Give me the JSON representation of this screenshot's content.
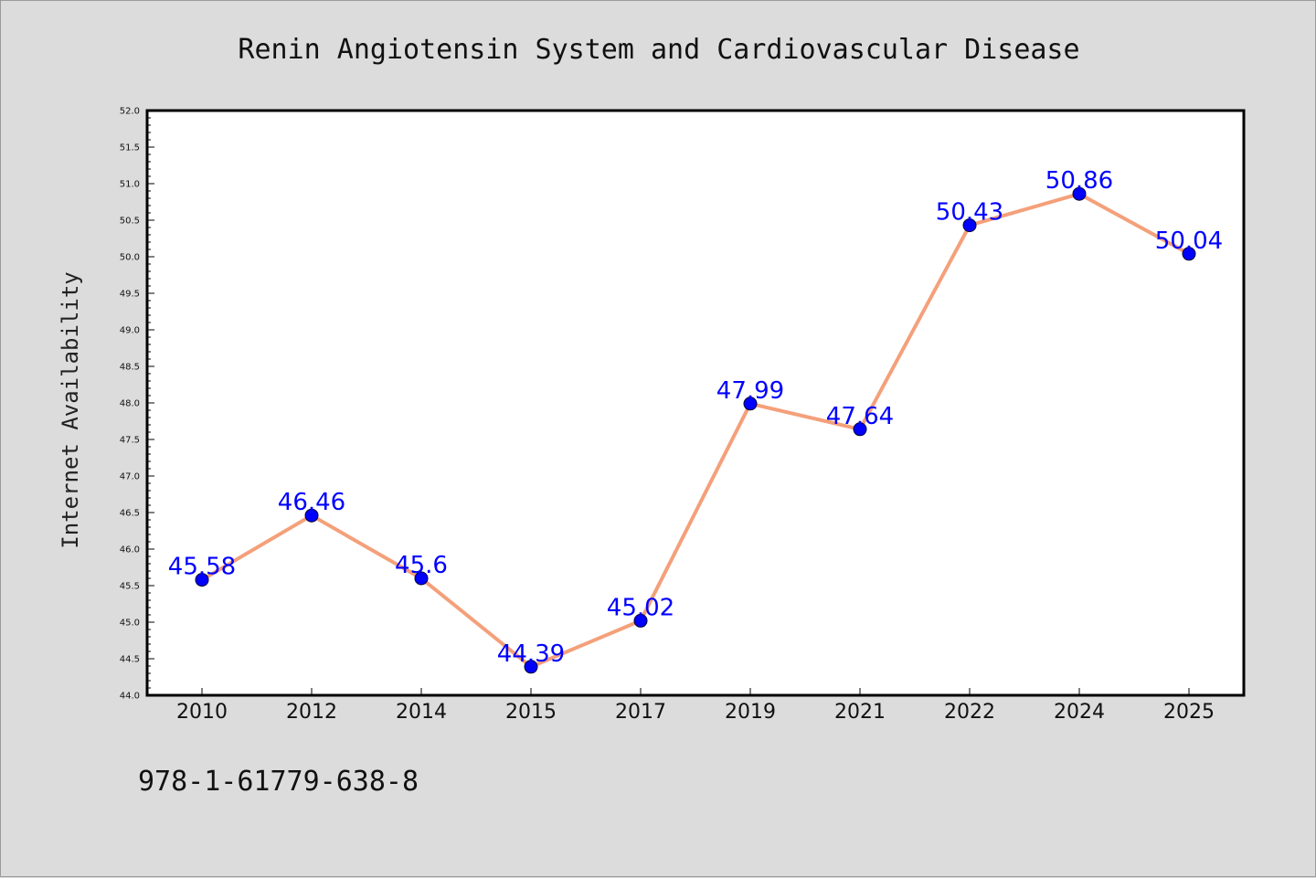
{
  "chart_data": {
    "type": "line",
    "title": "Renin Angiotensin System and Cardiovascular Disease",
    "xlabel": "",
    "ylabel": "Internet Availability",
    "categories": [
      "2010",
      "2012",
      "2014",
      "2015",
      "2017",
      "2019",
      "2021",
      "2022",
      "2024",
      "2025"
    ],
    "series": [
      {
        "values": [
          45.58,
          46.46,
          45.6,
          44.39,
          45.02,
          47.99,
          47.64,
          50.43,
          50.86,
          50.04
        ],
        "data_labels": [
          "45.58",
          "46.46",
          "45.6",
          "44.39",
          "45.02",
          "47.99",
          "47.64",
          "50.43",
          "50.86",
          "50.04"
        ]
      }
    ],
    "ylim": [
      44.0,
      52.0
    ],
    "yticks": [
      "44.0",
      "44.5",
      "45.0",
      "45.5",
      "46.0",
      "46.5",
      "47.0",
      "47.5",
      "48.0",
      "48.5",
      "49.0",
      "49.5",
      "50.0",
      "50.5",
      "51.0",
      "51.5",
      "52.0"
    ],
    "grid": false,
    "legend": "none",
    "colors": {
      "line": "#f4a07a",
      "marker": "#0000ff",
      "data_label": "#0000ff",
      "background": "#dcdcdc",
      "plot_background": "#ffffff"
    }
  },
  "footer": {
    "isbn": "978-1-61779-638-8"
  }
}
